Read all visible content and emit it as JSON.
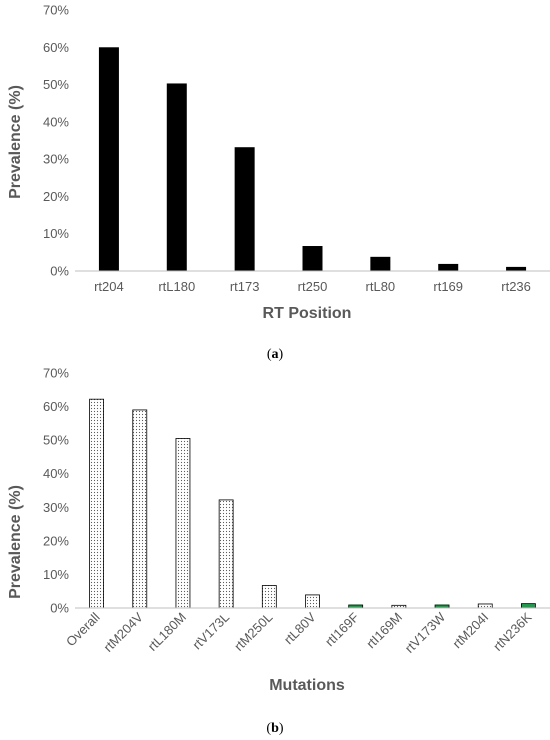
{
  "chart_data": [
    {
      "type": "bar",
      "caption": "(a)",
      "caption_bold_letter": "a",
      "xlabel": "RT Position",
      "ylabel": "Prevalence (%)",
      "ylim": [
        0,
        70
      ],
      "ytick_step": 10,
      "ytick_suffix": "%",
      "categories": [
        "rt204",
        "rtL180",
        "rt173",
        "rt250",
        "rtL80",
        "rt169",
        "rt236"
      ],
      "values": [
        60,
        50.3,
        33.2,
        6.7,
        3.8,
        1.9,
        1.1
      ],
      "bar_fill": "#000000",
      "grid": false,
      "legend": "none"
    },
    {
      "type": "bar",
      "caption": "(b)",
      "caption_bold_letter": "b",
      "xlabel": "Mutations",
      "ylabel": "Prevalence (%)",
      "ylim": [
        0,
        70
      ],
      "ytick_step": 10,
      "ytick_suffix": "%",
      "categories": [
        "Overall",
        "rtM204V",
        "rtL180M",
        "rtV173L",
        "rtM250L",
        "rtL80V",
        "rtI169F",
        "rtI169M",
        "rtV173W",
        "rtM204I",
        "rtN236K"
      ],
      "values": [
        62.2,
        59,
        50.5,
        32.2,
        6.7,
        3.9,
        0.9,
        0.8,
        0.9,
        1.2,
        1.3
      ],
      "bar_styles": [
        "dotted",
        "dotted",
        "dotted",
        "dotted",
        "dotted",
        "dotted",
        "green",
        "dotted",
        "green",
        "dotted",
        "green"
      ],
      "colors": {
        "dotted_fill": "#ffffff",
        "dotted_dot": "#595959",
        "green": "#1e9e4a",
        "bar_stroke": "#000000"
      },
      "grid": false,
      "legend": "none"
    }
  ]
}
